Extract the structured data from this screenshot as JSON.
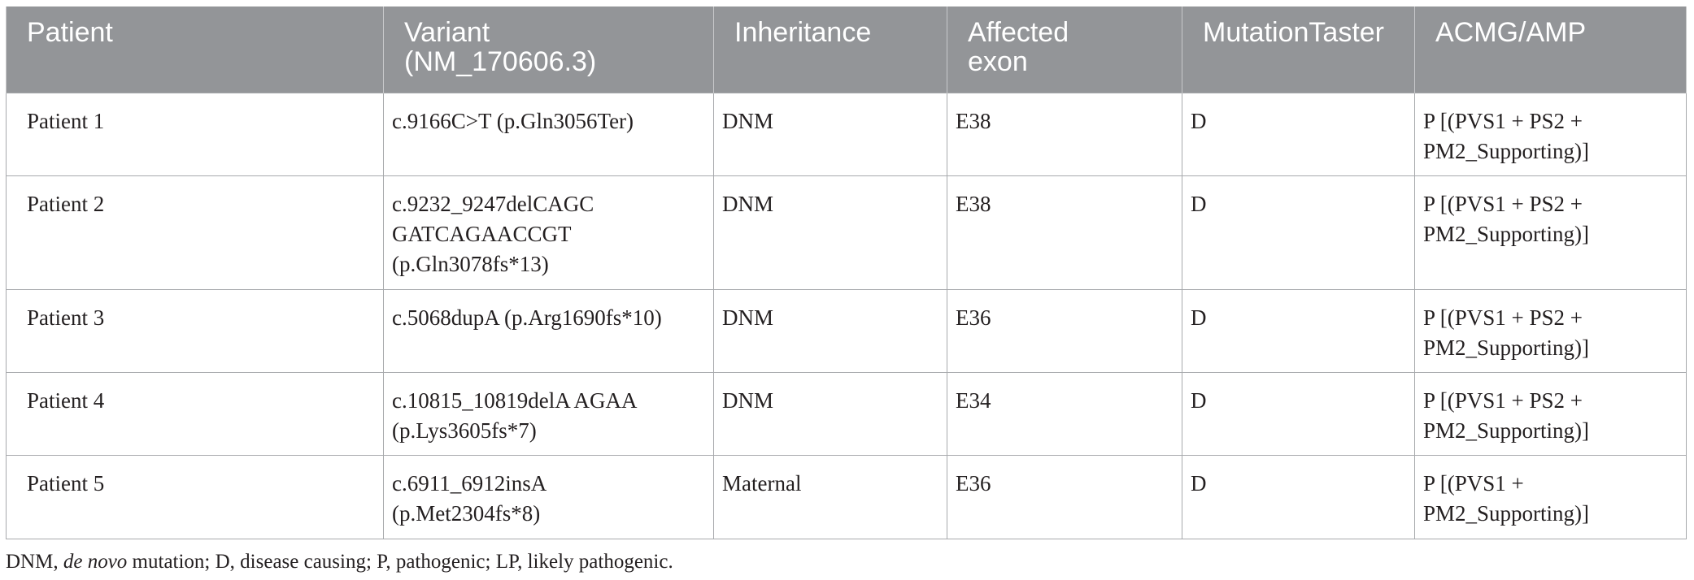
{
  "table": {
    "headers": [
      {
        "lines": [
          "Patient"
        ]
      },
      {
        "lines": [
          "Variant",
          "(NM_170606.3)"
        ]
      },
      {
        "lines": [
          "Inheritance"
        ]
      },
      {
        "lines": [
          "Affected",
          "exon"
        ]
      },
      {
        "lines": [
          "MutationTaster"
        ]
      },
      {
        "lines": [
          "ACMG/AMP"
        ]
      }
    ],
    "rows": [
      {
        "patient": "Patient 1",
        "variant": [
          "c.9166C>T (p.Gln3056Ter)"
        ],
        "inheritance": "DNM",
        "exon": "E38",
        "mutation_taster": "D",
        "acmg": [
          "P [(PVS1 + PS2 +",
          "PM2_Supporting)]"
        ]
      },
      {
        "patient": "Patient 2",
        "variant": [
          "c.9232_9247delCAGC",
          "GATCAGAACCGT",
          "(p.Gln3078fs*13)"
        ],
        "inheritance": "DNM",
        "exon": "E38",
        "mutation_taster": "D",
        "acmg": [
          "P [(PVS1 + PS2 +",
          "PM2_Supporting)]"
        ]
      },
      {
        "patient": "Patient 3",
        "variant": [
          "c.5068dupA (p.Arg1690fs*10)"
        ],
        "inheritance": "DNM",
        "exon": "E36",
        "mutation_taster": "D",
        "acmg": [
          "P [(PVS1 + PS2 +",
          "PM2_Supporting)]"
        ]
      },
      {
        "patient": "Patient 4",
        "variant": [
          "c.10815_10819delA AGAA",
          "(p.Lys3605fs*7)"
        ],
        "inheritance": "DNM",
        "exon": "E34",
        "mutation_taster": "D",
        "acmg": [
          "P [(PVS1 + PS2 +",
          "PM2_Supporting)]"
        ]
      },
      {
        "patient": "Patient 5",
        "variant": [
          "c.6911_6912insA",
          "(p.Met2304fs*8)"
        ],
        "inheritance": "Maternal",
        "exon": "E36",
        "mutation_taster": "D",
        "acmg": [
          "P [(PVS1 +",
          "PM2_Supporting)]"
        ]
      }
    ]
  },
  "footnote": {
    "prefix": "DNM, ",
    "italic": "de novo",
    "suffix": " mutation; D, disease causing; P, pathogenic; LP, likely pathogenic."
  },
  "colors": {
    "header_bg": "#939598",
    "header_text": "#ffffff",
    "border": "#a7a9ac",
    "text": "#231f20"
  }
}
